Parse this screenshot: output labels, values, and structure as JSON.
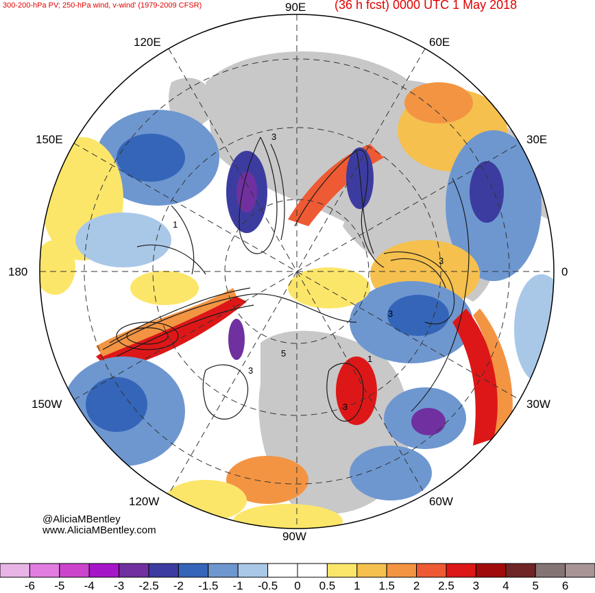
{
  "header": {
    "left_title": "300-200-hPa PV; 250-hPa wind, v-wind' (1979-2009 CFSR)",
    "right_title": "(36 h fcst) 0000 UTC 1 May 2018"
  },
  "map": {
    "projection": "north-polar-stereographic",
    "longitude_labels": {
      "lon_90e": "90E",
      "lon_60e": "60E",
      "lon_30e": "30E",
      "lon_0": "0",
      "lon_30w": "30W",
      "lon_60w": "60W",
      "lon_90w": "90W",
      "lon_120w": "120W",
      "lon_150w": "150W",
      "lon_180": "180",
      "lon_150e": "150E",
      "lon_120e": "120E"
    },
    "pv_contour_labels": [
      "1",
      "3",
      "3",
      "3",
      "1",
      "5",
      "3",
      "3"
    ],
    "colors": {
      "land": "#c8c8c8",
      "ocean": "#ffffff",
      "contour": "#1a1a1a"
    }
  },
  "credits": {
    "twitter": "@AliciaMBentley",
    "website": "www.AliciaMBentley.com"
  },
  "colorbar": {
    "labels": [
      "-6",
      "-5",
      "-4",
      "-3",
      "-2.5",
      "-2",
      "-1.5",
      "-1",
      "-0.5",
      "0",
      "0.5",
      "1",
      "1.5",
      "2",
      "2.5",
      "3",
      "4",
      "5",
      "6"
    ],
    "colors": [
      "#e8b4e6",
      "#e07ddf",
      "#cc44cc",
      "#a616c9",
      "#7030a0",
      "#3c3ca0",
      "#3465b8",
      "#6e97d0",
      "#a9c8e8",
      "#ffffff",
      "#ffffff",
      "#fce66a",
      "#f5c04e",
      "#f39443",
      "#ee5a33",
      "#dd1717",
      "#a10a0a",
      "#6f2525",
      "#847474",
      "#a89494"
    ]
  }
}
